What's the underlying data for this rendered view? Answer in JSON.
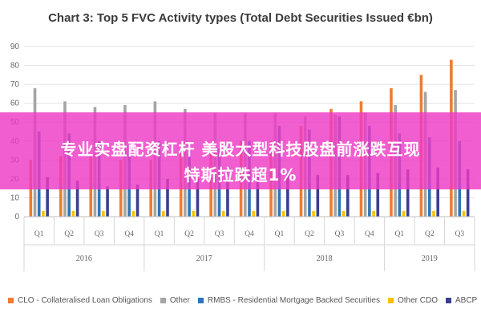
{
  "chart_data": {
    "type": "bar",
    "title": "Chart 3: Top 5 FVC Activity types (Total Debt Securities Issued €bn)",
    "ylim": [
      0,
      90
    ],
    "yticks": [
      0,
      10,
      20,
      30,
      40,
      50,
      60,
      70,
      80,
      90
    ],
    "grid": true,
    "legend_position": "bottom",
    "categories": [
      "Q1",
      "Q2",
      "Q3",
      "Q4",
      "Q1",
      "Q2",
      "Q3",
      "Q4",
      "Q1",
      "Q2",
      "Q3",
      "Q4",
      "Q1",
      "Q2",
      "Q3"
    ],
    "years": [
      {
        "label": "2016",
        "quarters": 4
      },
      {
        "label": "2017",
        "quarters": 4
      },
      {
        "label": "2018",
        "quarters": 4
      },
      {
        "label": "2019",
        "quarters": 3
      }
    ],
    "series": [
      {
        "name": "CLO - Collateralised Loan Obligations",
        "color": "#ED7D31",
        "values": [
          30,
          32,
          32,
          30,
          30,
          36,
          36,
          40,
          40,
          48,
          57,
          61,
          68,
          75,
          83
        ]
      },
      {
        "name": "Other",
        "color": "#A5A5A5",
        "values": [
          68,
          61,
          58,
          59,
          61,
          57,
          55,
          55,
          55,
          53,
          54,
          55,
          59,
          66,
          67
        ]
      },
      {
        "name": "RMBS - Residential Mortgage Backed Securities",
        "color": "#2E75B6",
        "values": [
          45,
          44,
          40,
          38,
          40,
          38,
          36,
          40,
          48,
          46,
          53,
          48,
          44,
          42,
          40
        ]
      },
      {
        "name": "Other CDO",
        "color": "#FFC000",
        "values": [
          3,
          3,
          3,
          3,
          3,
          3,
          3,
          3,
          3,
          3,
          3,
          3,
          3,
          3,
          3
        ]
      },
      {
        "name": "ABCP",
        "color": "#3A3F8F",
        "values": [
          21,
          19,
          16,
          17,
          20,
          20,
          20,
          21,
          22,
          22,
          22,
          23,
          25,
          26,
          25
        ]
      }
    ]
  },
  "overlay": {
    "line1": "专业实盘配资杠杆 美股大型科技股盘前涨跌互现",
    "line2": "特斯拉跌超1%"
  }
}
